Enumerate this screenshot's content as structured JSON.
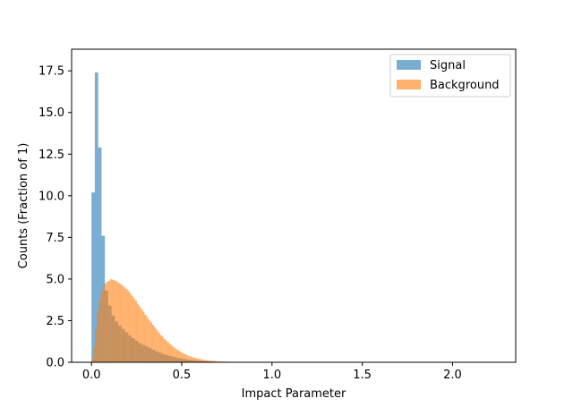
{
  "chart_data": {
    "type": "bar",
    "subtype": "histogram",
    "xlabel": "Impact Parameter",
    "ylabel": "Counts (Fraction of 1)",
    "xlim": [
      -0.11,
      2.35
    ],
    "ylim": [
      0,
      18.8
    ],
    "xticks": [
      0.0,
      0.5,
      1.0,
      1.5,
      2.0
    ],
    "xtick_labels": [
      "0.0",
      "0.5",
      "1.0",
      "1.5",
      "2.0"
    ],
    "yticks": [
      0.0,
      2.5,
      5.0,
      7.5,
      10.0,
      12.5,
      15.0,
      17.5
    ],
    "ytick_labels": [
      "0.0",
      "2.5",
      "5.0",
      "7.5",
      "10.0",
      "12.5",
      "15.0",
      "17.5"
    ],
    "grid": false,
    "legend_position": "upper right",
    "series": [
      {
        "name": "Signal",
        "color": "#1f77b4",
        "alpha": 0.6,
        "bin_width": 0.0185,
        "bin_start": 0.0,
        "values": [
          10.2,
          17.4,
          12.9,
          7.6,
          4.3,
          3.4,
          2.8,
          2.45,
          2.2,
          2.0,
          1.8,
          1.6,
          1.45,
          1.3,
          1.15,
          1.05,
          0.95,
          0.85,
          0.75,
          0.66,
          0.58,
          0.5,
          0.44,
          0.38,
          0.33,
          0.28,
          0.24,
          0.2,
          0.17,
          0.14,
          0.12,
          0.1,
          0.08,
          0.07,
          0.06,
          0.05,
          0.04,
          0.03,
          0.02,
          0.02
        ]
      },
      {
        "name": "Background",
        "color": "#ff7f0e",
        "alpha": 0.6,
        "bin_width": 0.0105,
        "bin_start": 0.0,
        "values": [
          0.2,
          0.9,
          2.0,
          3.1,
          3.8,
          4.3,
          4.6,
          4.75,
          4.85,
          4.9,
          5.0,
          4.95,
          4.9,
          4.85,
          4.75,
          4.7,
          4.6,
          4.5,
          4.4,
          4.3,
          4.15,
          4.0,
          3.85,
          3.7,
          3.5,
          3.35,
          3.2,
          3.05,
          2.85,
          2.7,
          2.55,
          2.4,
          2.25,
          2.1,
          1.95,
          1.8,
          1.65,
          1.55,
          1.4,
          1.3,
          1.2,
          1.1,
          1.0,
          0.9,
          0.82,
          0.74,
          0.67,
          0.6,
          0.54,
          0.48,
          0.43,
          0.38,
          0.34,
          0.3,
          0.27,
          0.24,
          0.21,
          0.19,
          0.16,
          0.14,
          0.12,
          0.11,
          0.1,
          0.09,
          0.08,
          0.07,
          0.06,
          0.05,
          0.05,
          0.04,
          0.04,
          0.03,
          0.03,
          0.02,
          0.02,
          0.02,
          0.015,
          0.01,
          0.01,
          0.01
        ]
      }
    ]
  }
}
